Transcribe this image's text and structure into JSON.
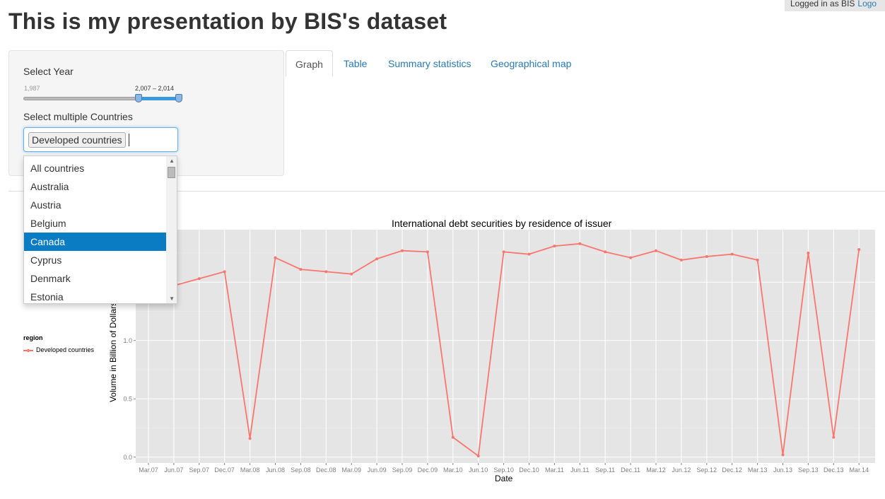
{
  "header": {
    "logged_in": "Logged in as BIS",
    "logout": "Logo",
    "title": "This is my presentation by BIS's dataset"
  },
  "sidebar": {
    "year_label": "Select Year",
    "year_min": "1,987",
    "year_range_label": "2,007 – 2,014",
    "year_slider": {
      "min": 1987,
      "max": 2014,
      "from": 2007,
      "to": 2014
    },
    "countries_label": "Select multiple Countries",
    "selected_chip": "Developed countries",
    "dropdown_items": [
      "All countries",
      "Australia",
      "Austria",
      "Belgium",
      "Canada",
      "Cyprus",
      "Denmark",
      "Estonia"
    ],
    "dropdown_highlighted": "Canada"
  },
  "tabs": [
    {
      "label": "Graph",
      "active": true
    },
    {
      "label": "Table",
      "active": false
    },
    {
      "label": "Summary statistics",
      "active": false
    },
    {
      "label": "Geographical map",
      "active": false
    }
  ],
  "colors": {
    "series": "#f8766d",
    "panel": "#e5e5e5",
    "accent": "#2a7ab0",
    "highlight": "#0a7cc4"
  },
  "chart_data": {
    "type": "line",
    "title": "International debt securities by residence of issuer",
    "xlabel": "Date",
    "ylabel": "Volume in Billion of Dollars",
    "legend_title": "region",
    "legend_position": "left",
    "grid": true,
    "ylim": [
      -0.05,
      1.95
    ],
    "yticks": [
      "0.0",
      "0.5",
      "1.0"
    ],
    "categories": [
      "Mar.07",
      "Jun.07",
      "Sep.07",
      "Dec.07",
      "Mar.08",
      "Jun.08",
      "Sep.08",
      "Dec.08",
      "Mar.09",
      "Jun.09",
      "Sep.09",
      "Dec.09",
      "Mar.10",
      "Jun.10",
      "Sep.10",
      "Dec.10",
      "Mar.11",
      "Jun.11",
      "Sep.11",
      "Dec.11",
      "Mar.12",
      "Jun.12",
      "Sep.12",
      "Dec.12",
      "Mar.13",
      "Jun.13",
      "Sep.13",
      "Dec.13",
      "Mar.14"
    ],
    "series": [
      {
        "name": "Developed countries",
        "values": [
          1.39,
          1.47,
          1.53,
          1.59,
          0.16,
          1.71,
          1.61,
          1.59,
          1.57,
          1.7,
          1.77,
          1.76,
          0.17,
          0.01,
          1.76,
          1.74,
          1.81,
          1.83,
          1.76,
          1.71,
          1.77,
          1.69,
          1.72,
          1.74,
          1.69,
          0.02,
          1.75,
          0.17,
          1.78
        ]
      }
    ]
  }
}
